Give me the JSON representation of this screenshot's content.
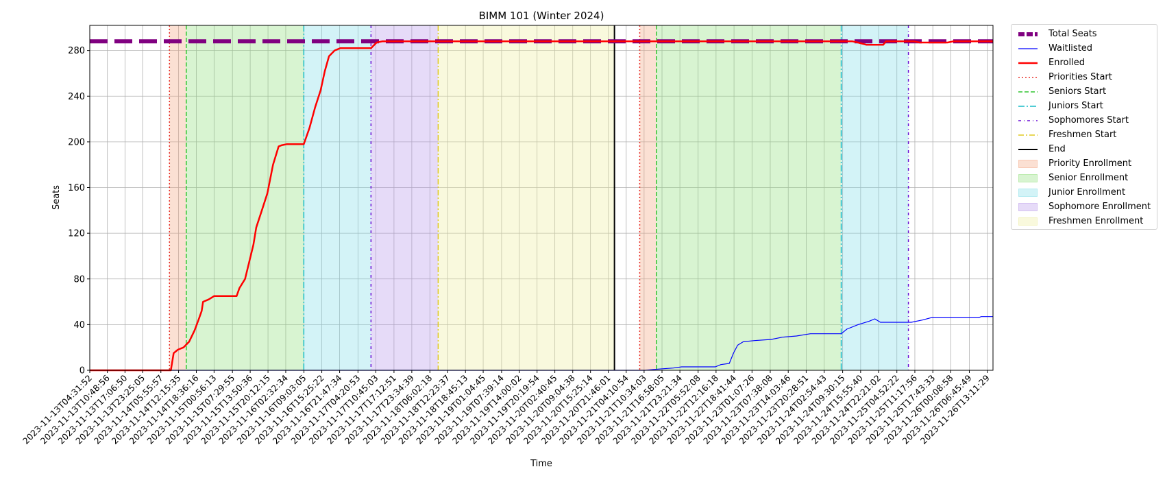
{
  "chart_data": {
    "type": "line",
    "title": "BIMM 101 (Winter 2024)",
    "xlabel": "Time",
    "ylabel": "Seats",
    "ylim": [
      0,
      302
    ],
    "yticks": [
      0,
      40,
      80,
      120,
      160,
      200,
      240,
      280
    ],
    "grid": true,
    "legend_position": "outside-right-top",
    "x_range": [
      "2023-11-13T04:31:52",
      "2023-11-26T15:13:00"
    ],
    "xticks": [
      "2023-11-13T04:31:52",
      "2023-11-13T10:48:56",
      "2023-11-13T17:06:50",
      "2023-11-13T23:25:05",
      "2023-11-14T05:55:57",
      "2023-11-14T12:15:35",
      "2023-11-14T18:36:16",
      "2023-11-15T00:56:13",
      "2023-11-15T07:29:55",
      "2023-11-15T13:50:36",
      "2023-11-15T20:12:15",
      "2023-11-16T02:32:34",
      "2023-11-16T09:03:05",
      "2023-11-16T15:25:22",
      "2023-11-16T21:47:34",
      "2023-11-17T04:20:53",
      "2023-11-17T10:45:03",
      "2023-11-17T17:12:51",
      "2023-11-17T23:34:39",
      "2023-11-18T06:02:18",
      "2023-11-18T12:23:37",
      "2023-11-18T18:45:13",
      "2023-11-19T01:04:45",
      "2023-11-19T07:39:14",
      "2023-11-19T14:00:02",
      "2023-11-19T20:19:54",
      "2023-11-20T02:40:45",
      "2023-11-20T09:04:38",
      "2023-11-20T15:25:14",
      "2023-11-20T21:46:01",
      "2023-11-21T04:10:54",
      "2023-11-21T10:34:03",
      "2023-11-21T16:58:05",
      "2023-11-21T23:21:34",
      "2023-11-22T05:52:08",
      "2023-11-22T12:16:18",
      "2023-11-22T18:41:44",
      "2023-11-23T01:07:26",
      "2023-11-23T07:38:08",
      "2023-11-23T14:03:46",
      "2023-11-23T20:28:51",
      "2023-11-24T02:54:43",
      "2023-11-24T09:30:15",
      "2023-11-24T15:55:40",
      "2023-11-24T22:21:02",
      "2023-11-25T04:52:22",
      "2023-11-25T11:17:56",
      "2023-11-25T17:43:33",
      "2023-11-26T00:08:58",
      "2023-11-26T06:45:49",
      "2023-11-26T13:11:29"
    ],
    "phases": [
      {
        "name": "Priority Enrollment",
        "start": "2023-11-14T09:00:00",
        "end": "2023-11-14T15:00:00",
        "color": "#f4a582"
      },
      {
        "name": "Senior Enrollment",
        "start": "2023-11-14T15:00:00",
        "end": "2023-11-16T09:00:00",
        "color": "#90e07a"
      },
      {
        "name": "Junior Enrollment",
        "start": "2023-11-16T09:00:00",
        "end": "2023-11-17T09:00:00",
        "color": "#80dde8"
      },
      {
        "name": "Sophomore Enrollment",
        "start": "2023-11-17T09:00:00",
        "end": "2023-11-18T09:00:00",
        "color": "#b898ea"
      },
      {
        "name": "Freshmen Enrollment",
        "start": "2023-11-18T09:00:00",
        "end": "2023-11-20T23:59:00",
        "color": "#eeee9e"
      },
      {
        "name": "Priority Enrollment",
        "start": "2023-11-21T09:00:00",
        "end": "2023-11-21T15:00:00",
        "color": "#f4a582"
      },
      {
        "name": "Senior Enrollment",
        "start": "2023-11-21T15:00:00",
        "end": "2023-11-24T09:00:00",
        "color": "#90e07a"
      },
      {
        "name": "Junior Enrollment",
        "start": "2023-11-24T09:00:00",
        "end": "2023-11-25T09:00:00",
        "color": "#80dde8"
      }
    ],
    "markers": [
      {
        "name": "Priorities Start",
        "at": [
          "2023-11-14T09:00:00",
          "2023-11-21T09:00:00"
        ],
        "color": "#e8302a",
        "dash": "2,3"
      },
      {
        "name": "Seniors Start",
        "at": [
          "2023-11-14T15:00:00",
          "2023-11-21T15:00:00"
        ],
        "color": "#2fc42f",
        "dash": "6,3"
      },
      {
        "name": "Juniors Start",
        "at": [
          "2023-11-16T09:00:00",
          "2023-11-24T09:00:00"
        ],
        "color": "#17bcc7",
        "dash": "9,3,2,3"
      },
      {
        "name": "Sophomores Start",
        "at": [
          "2023-11-17T09:00:00",
          "2023-11-25T09:00:00"
        ],
        "color": "#6a0fd6",
        "dash": "4,4,1,4"
      },
      {
        "name": "Freshmen Start",
        "at": [
          "2023-11-18T09:00:00"
        ],
        "color": "#e0c81e",
        "dash": "8,3,2,3"
      },
      {
        "name": "End",
        "at": [
          "2023-11-20T23:59:00"
        ],
        "color": "#000000",
        "dash": ""
      }
    ],
    "series": [
      {
        "name": "Total Seats",
        "color": "#800080",
        "points": [
          [
            "2023-11-13T04:31:52",
            288
          ],
          [
            "2023-11-26T15:13:00",
            288
          ]
        ]
      },
      {
        "name": "Waitlisted",
        "color": "#0000ff",
        "points": [
          [
            "2023-11-13T04:31:52",
            0
          ],
          [
            "2023-11-21T11:00:00",
            0
          ],
          [
            "2023-11-21T15:30:00",
            1
          ],
          [
            "2023-11-21T21:00:00",
            2
          ],
          [
            "2023-11-22T00:00:00",
            3
          ],
          [
            "2023-11-22T12:00:00",
            3
          ],
          [
            "2023-11-22T14:00:00",
            5
          ],
          [
            "2023-11-22T17:00:00",
            6
          ],
          [
            "2023-11-22T18:30:00",
            15
          ],
          [
            "2023-11-22T20:00:00",
            22
          ],
          [
            "2023-11-22T22:00:00",
            25
          ],
          [
            "2023-11-23T02:00:00",
            26
          ],
          [
            "2023-11-23T08:00:00",
            27
          ],
          [
            "2023-11-23T12:00:00",
            29
          ],
          [
            "2023-11-23T17:00:00",
            30
          ],
          [
            "2023-11-23T22:00:00",
            32
          ],
          [
            "2023-11-24T09:00:00",
            32
          ],
          [
            "2023-11-24T11:00:00",
            36
          ],
          [
            "2023-11-24T15:00:00",
            40
          ],
          [
            "2023-11-24T19:00:00",
            43
          ],
          [
            "2023-11-24T21:00:00",
            45
          ],
          [
            "2023-11-24T23:00:00",
            42
          ],
          [
            "2023-11-25T10:00:00",
            42
          ],
          [
            "2023-11-25T14:00:00",
            44
          ],
          [
            "2023-11-25T17:00:00",
            46
          ],
          [
            "2023-11-25T21:00:00",
            46
          ],
          [
            "2023-11-25T23:00:00",
            46
          ],
          [
            "2023-11-26T10:00:00",
            46
          ],
          [
            "2023-11-26T11:00:00",
            47
          ],
          [
            "2023-11-26T15:13:00",
            47
          ]
        ]
      },
      {
        "name": "Enrolled",
        "color": "#ff0000",
        "points": [
          [
            "2023-11-13T04:31:52",
            0
          ],
          [
            "2023-11-14T09:30:00",
            0
          ],
          [
            "2023-11-14T10:30:00",
            15
          ],
          [
            "2023-11-14T12:00:00",
            18
          ],
          [
            "2023-11-14T14:00:00",
            20
          ],
          [
            "2023-11-14T16:00:00",
            25
          ],
          [
            "2023-11-14T18:00:00",
            35
          ],
          [
            "2023-11-14T19:30:00",
            45
          ],
          [
            "2023-11-14T20:30:00",
            52
          ],
          [
            "2023-11-14T21:00:00",
            60
          ],
          [
            "2023-11-14T23:00:00",
            62
          ],
          [
            "2023-11-15T01:00:00",
            65
          ],
          [
            "2023-11-15T09:00:00",
            65
          ],
          [
            "2023-11-15T10:00:00",
            72
          ],
          [
            "2023-11-15T12:00:00",
            80
          ],
          [
            "2023-11-15T13:30:00",
            95
          ],
          [
            "2023-11-15T15:00:00",
            110
          ],
          [
            "2023-11-15T16:00:00",
            125
          ],
          [
            "2023-11-15T18:00:00",
            140
          ],
          [
            "2023-11-15T20:00:00",
            155
          ],
          [
            "2023-11-15T22:00:00",
            180
          ],
          [
            "2023-11-16T00:00:00",
            196
          ],
          [
            "2023-11-16T01:00:00",
            197
          ],
          [
            "2023-11-16T03:00:00",
            198
          ],
          [
            "2023-11-16T09:00:00",
            198
          ],
          [
            "2023-11-16T11:00:00",
            212
          ],
          [
            "2023-11-16T13:00:00",
            230
          ],
          [
            "2023-11-16T15:00:00",
            245
          ],
          [
            "2023-11-16T16:30:00",
            262
          ],
          [
            "2023-11-16T18:00:00",
            275
          ],
          [
            "2023-11-16T20:00:00",
            280
          ],
          [
            "2023-11-16T22:00:00",
            282
          ],
          [
            "2023-11-17T09:00:00",
            282
          ],
          [
            "2023-11-17T11:00:00",
            287
          ],
          [
            "2023-11-17T13:00:00",
            288
          ],
          [
            "2023-11-24T13:00:00",
            288
          ],
          [
            "2023-11-24T15:00:00",
            287
          ],
          [
            "2023-11-24T18:00:00",
            285
          ],
          [
            "2023-11-25T00:00:00",
            285
          ],
          [
            "2023-11-25T01:00:00",
            288
          ],
          [
            "2023-11-25T11:00:00",
            288
          ],
          [
            "2023-11-25T13:00:00",
            287
          ],
          [
            "2023-11-25T23:00:00",
            287
          ],
          [
            "2023-11-26T01:00:00",
            288
          ],
          [
            "2023-11-26T15:13:00",
            288
          ]
        ]
      }
    ],
    "legend": [
      {
        "label": "Total Seats",
        "kind": "line",
        "color": "#800080",
        "dash": "9,3",
        "width": 6
      },
      {
        "label": "Waitlisted",
        "kind": "line",
        "color": "#0000ff",
        "dash": "",
        "width": 1.2
      },
      {
        "label": "Enrolled",
        "kind": "line",
        "color": "#ff0000",
        "dash": "",
        "width": 2.5
      },
      {
        "label": "Priorities Start",
        "kind": "line",
        "color": "#e8302a",
        "dash": "2,3",
        "width": 1.5
      },
      {
        "label": "Seniors Start",
        "kind": "line",
        "color": "#2fc42f",
        "dash": "6,3",
        "width": 1.5
      },
      {
        "label": "Juniors Start",
        "kind": "line",
        "color": "#17bcc7",
        "dash": "9,3,2,3",
        "width": 1.5
      },
      {
        "label": "Sophomores Start",
        "kind": "line",
        "color": "#6a0fd6",
        "dash": "4,4,1,4",
        "width": 1.5
      },
      {
        "label": "Freshmen Start",
        "kind": "line",
        "color": "#e0c81e",
        "dash": "8,3,2,3",
        "width": 1.5
      },
      {
        "label": "End",
        "kind": "line",
        "color": "#000000",
        "dash": "",
        "width": 2
      },
      {
        "label": "Priority Enrollment",
        "kind": "patch",
        "color": "#f4a582"
      },
      {
        "label": "Senior Enrollment",
        "kind": "patch",
        "color": "#90e07a"
      },
      {
        "label": "Junior Enrollment",
        "kind": "patch",
        "color": "#80dde8"
      },
      {
        "label": "Sophomore Enrollment",
        "kind": "patch",
        "color": "#b898ea"
      },
      {
        "label": "Freshmen Enrollment",
        "kind": "patch",
        "color": "#eeee9e"
      }
    ]
  }
}
